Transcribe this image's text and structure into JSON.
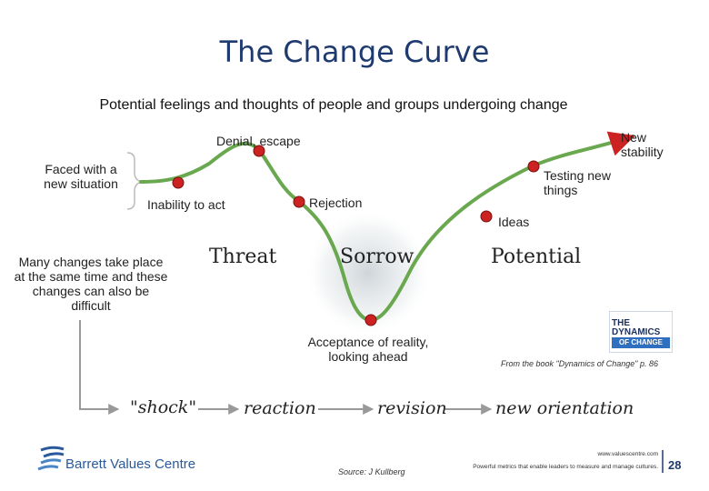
{
  "title": "The Change Curve",
  "subtitle": "Potential feelings and thoughts of people and groups undergoing change",
  "curve_labels": {
    "faced_with": "Faced with a new situation",
    "inability": "Inability to act",
    "denial": "Denial, escape",
    "rejection": "Rejection",
    "acceptance": "Acceptance of reality, looking ahead",
    "ideas": "Ideas",
    "testing": "Testing new things",
    "new_stability": "New stability"
  },
  "note": "Many changes take place at the same time and these changes can also be difficult",
  "phases": {
    "threat": "Threat",
    "sorrow": "Sorrow",
    "potential": "Potential"
  },
  "stages": {
    "shock": "\"shock\"",
    "reaction": "reaction",
    "revision": "revision",
    "new_orientation": "new orientation"
  },
  "book": {
    "line1": "THE DYNAMICS",
    "line2": "OF CHANGE",
    "credit": "From the book \"Dynamics of Change\" p. 86"
  },
  "footer": {
    "logo_text": "Barrett Values Centre",
    "source": "Source: J Kullberg",
    "url": "www.valuescentre.com",
    "tagline": "Powerful metrics that enable leaders to measure and manage cultures.",
    "page_number": "28"
  },
  "colors": {
    "title": "#1f3a6e",
    "curve": "#6aa84f",
    "marker": "#cc2222",
    "brand": "#2a5a9c"
  }
}
